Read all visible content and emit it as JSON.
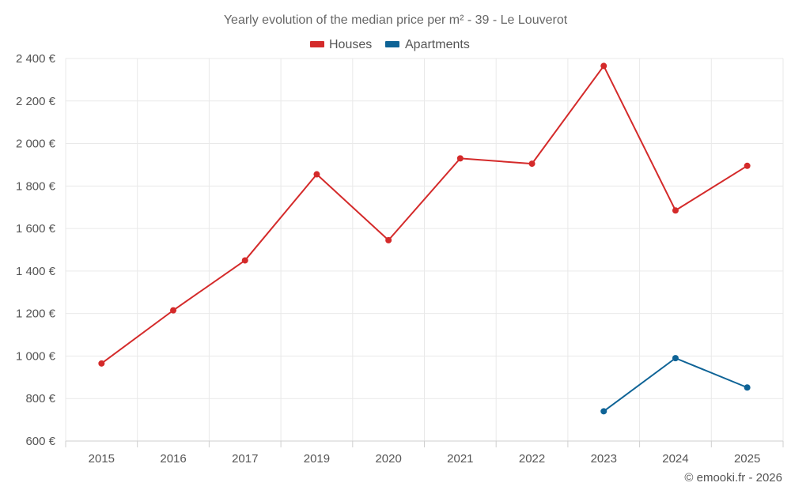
{
  "chart_data": {
    "type": "line",
    "title": "Yearly evolution of the median price per m² - 39 - Le Louverot",
    "categories": [
      "2015",
      "2016",
      "2017",
      "2019",
      "2020",
      "2021",
      "2022",
      "2023",
      "2024",
      "2025"
    ],
    "y_ticks": [
      "2 400 €",
      "2 200 €",
      "2 000 €",
      "1 800 €",
      "1 600 €",
      "1 400 €",
      "1 200 €",
      "1 000 €",
      "800 €",
      "600 €"
    ],
    "ylim": [
      600,
      2400
    ],
    "xlabel": "",
    "ylabel": "",
    "legend_position": "top-center",
    "series": [
      {
        "name": "Houses",
        "color": "#d42a2a",
        "values": [
          965,
          1215,
          1450,
          1855,
          1545,
          1930,
          1905,
          2365,
          1685,
          1895
        ]
      },
      {
        "name": "Apartments",
        "color": "#0e6396",
        "values": [
          null,
          null,
          null,
          null,
          null,
          null,
          null,
          740,
          990,
          852
        ]
      }
    ]
  },
  "credit": "© emooki.fr - 2026"
}
